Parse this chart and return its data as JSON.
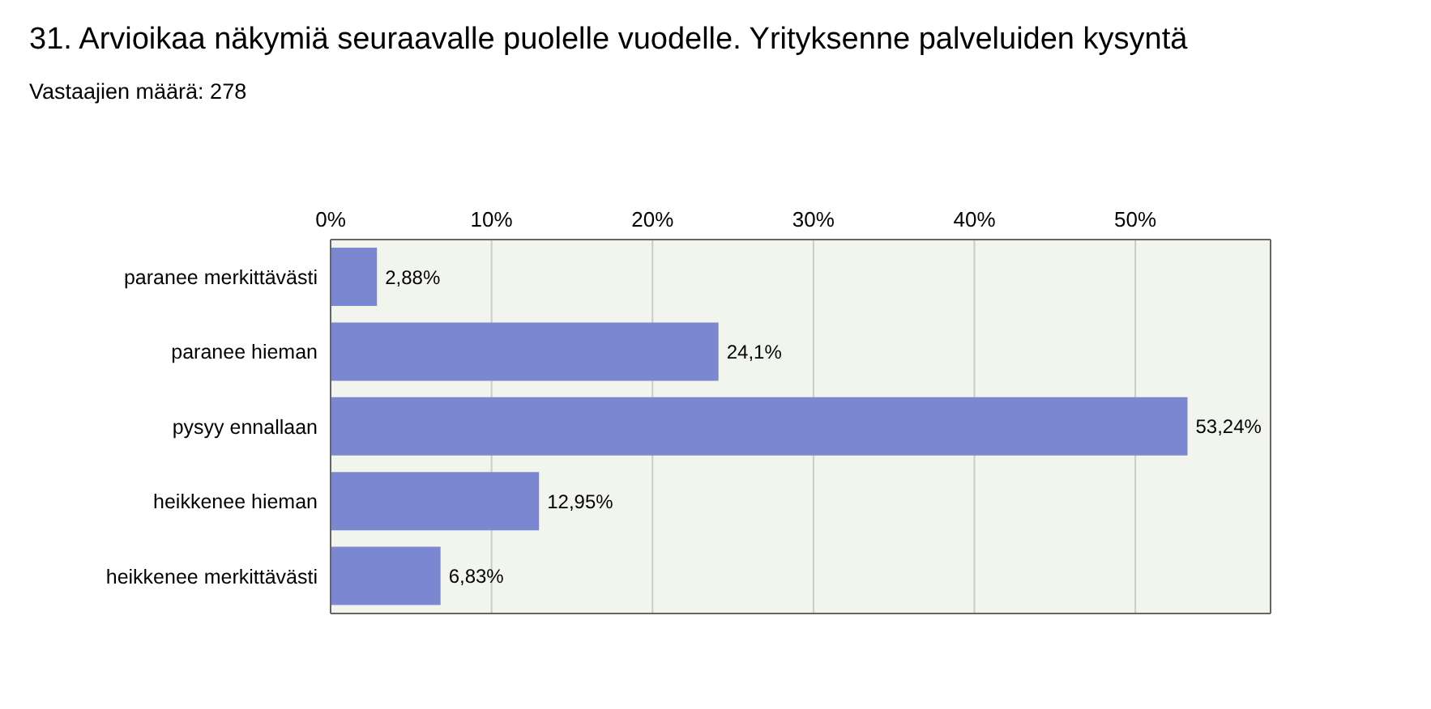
{
  "chart_data": {
    "type": "bar",
    "title": "31. Arvioikaa näkymiä seuraavalle puolelle vuodelle. Yrityksenne palveluiden kysyntä",
    "subtitle": "Vastaajien määrä: 278",
    "orientation": "horizontal",
    "categories": [
      "paranee merkittävästi",
      "paranee hieman",
      "pysyy ennallaan",
      "heikkenee hieman",
      "heikkenee merkittävästi"
    ],
    "values": [
      2.88,
      24.1,
      53.24,
      12.95,
      6.83
    ],
    "value_labels": [
      "2,88%",
      "24,1%",
      "53,24%",
      "12,95%",
      "6,83%"
    ],
    "color": "#7b87d1",
    "xlim": [
      0,
      58.4
    ],
    "xticks": [
      {
        "value": 0,
        "label": "0%"
      },
      {
        "value": 10,
        "label": "10%"
      },
      {
        "value": 20,
        "label": "20%"
      },
      {
        "value": 30,
        "label": "30%"
      },
      {
        "value": 40,
        "label": "40%"
      },
      {
        "value": 50,
        "label": "50%"
      }
    ],
    "grid": "x"
  }
}
